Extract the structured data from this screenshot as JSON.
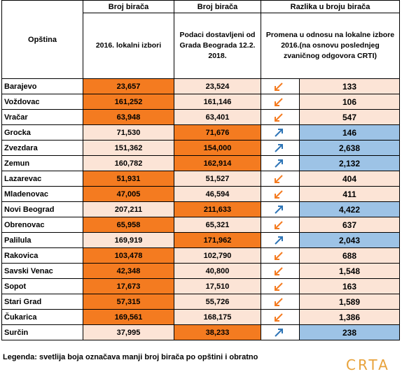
{
  "table": {
    "header": {
      "group_1": "Broj birača",
      "group_2": "Broj birača",
      "group_3": "Razlika u broju birača",
      "municipality": "Opština",
      "col_1": "2016. lokalni izbori",
      "col_2": "Podaci dostavljeni od Grada Beograda 12.2. 2018.",
      "col_3": "Promena u odnosu na lokalne izbore 2016.(na osnovu poslednjeg zvaničnog odgovora CRTI)"
    },
    "rows": [
      [
        "Barajevo",
        "23,657",
        "23,524",
        "133"
      ],
      [
        "Voždovac",
        "161,252",
        "161,146",
        "106"
      ],
      [
        "Vračar",
        "63,948",
        "63,401",
        "547"
      ],
      [
        "Grocka",
        "71,530",
        "71,676",
        "146"
      ],
      [
        "Zvezdara",
        "151,362",
        "154,000",
        "2,638"
      ],
      [
        "Zemun",
        "160,782",
        "162,914",
        "2,132"
      ],
      [
        "Lazarevac",
        "51,931",
        "51,527",
        "404"
      ],
      [
        "Mladenovac",
        "47,005",
        "46,594",
        "411"
      ],
      [
        "Novi Beograd",
        "207,211",
        "211,633",
        "4,422"
      ],
      [
        "Obrenovac",
        "65,958",
        "65,321",
        "637"
      ],
      [
        "Palilula",
        "169,919",
        "171,962",
        "2,043"
      ],
      [
        "Rakovica",
        "103,478",
        "102,790",
        "688"
      ],
      [
        "Savski Venac",
        "42,348",
        "40,800",
        "1,548"
      ],
      [
        "Sopot",
        "17,673",
        "17,510",
        "163"
      ],
      [
        "Stari Grad",
        "57,315",
        "55,726",
        "1,589"
      ],
      [
        "Čukarica",
        "169,561",
        "168,175",
        "1,386"
      ],
      [
        "Surčin",
        "37,995",
        "38,233",
        "238"
      ]
    ]
  },
  "legend": "Legenda: svetlija boja označava manji broj birača po opštini i obratno",
  "logo": "CRTA"
}
